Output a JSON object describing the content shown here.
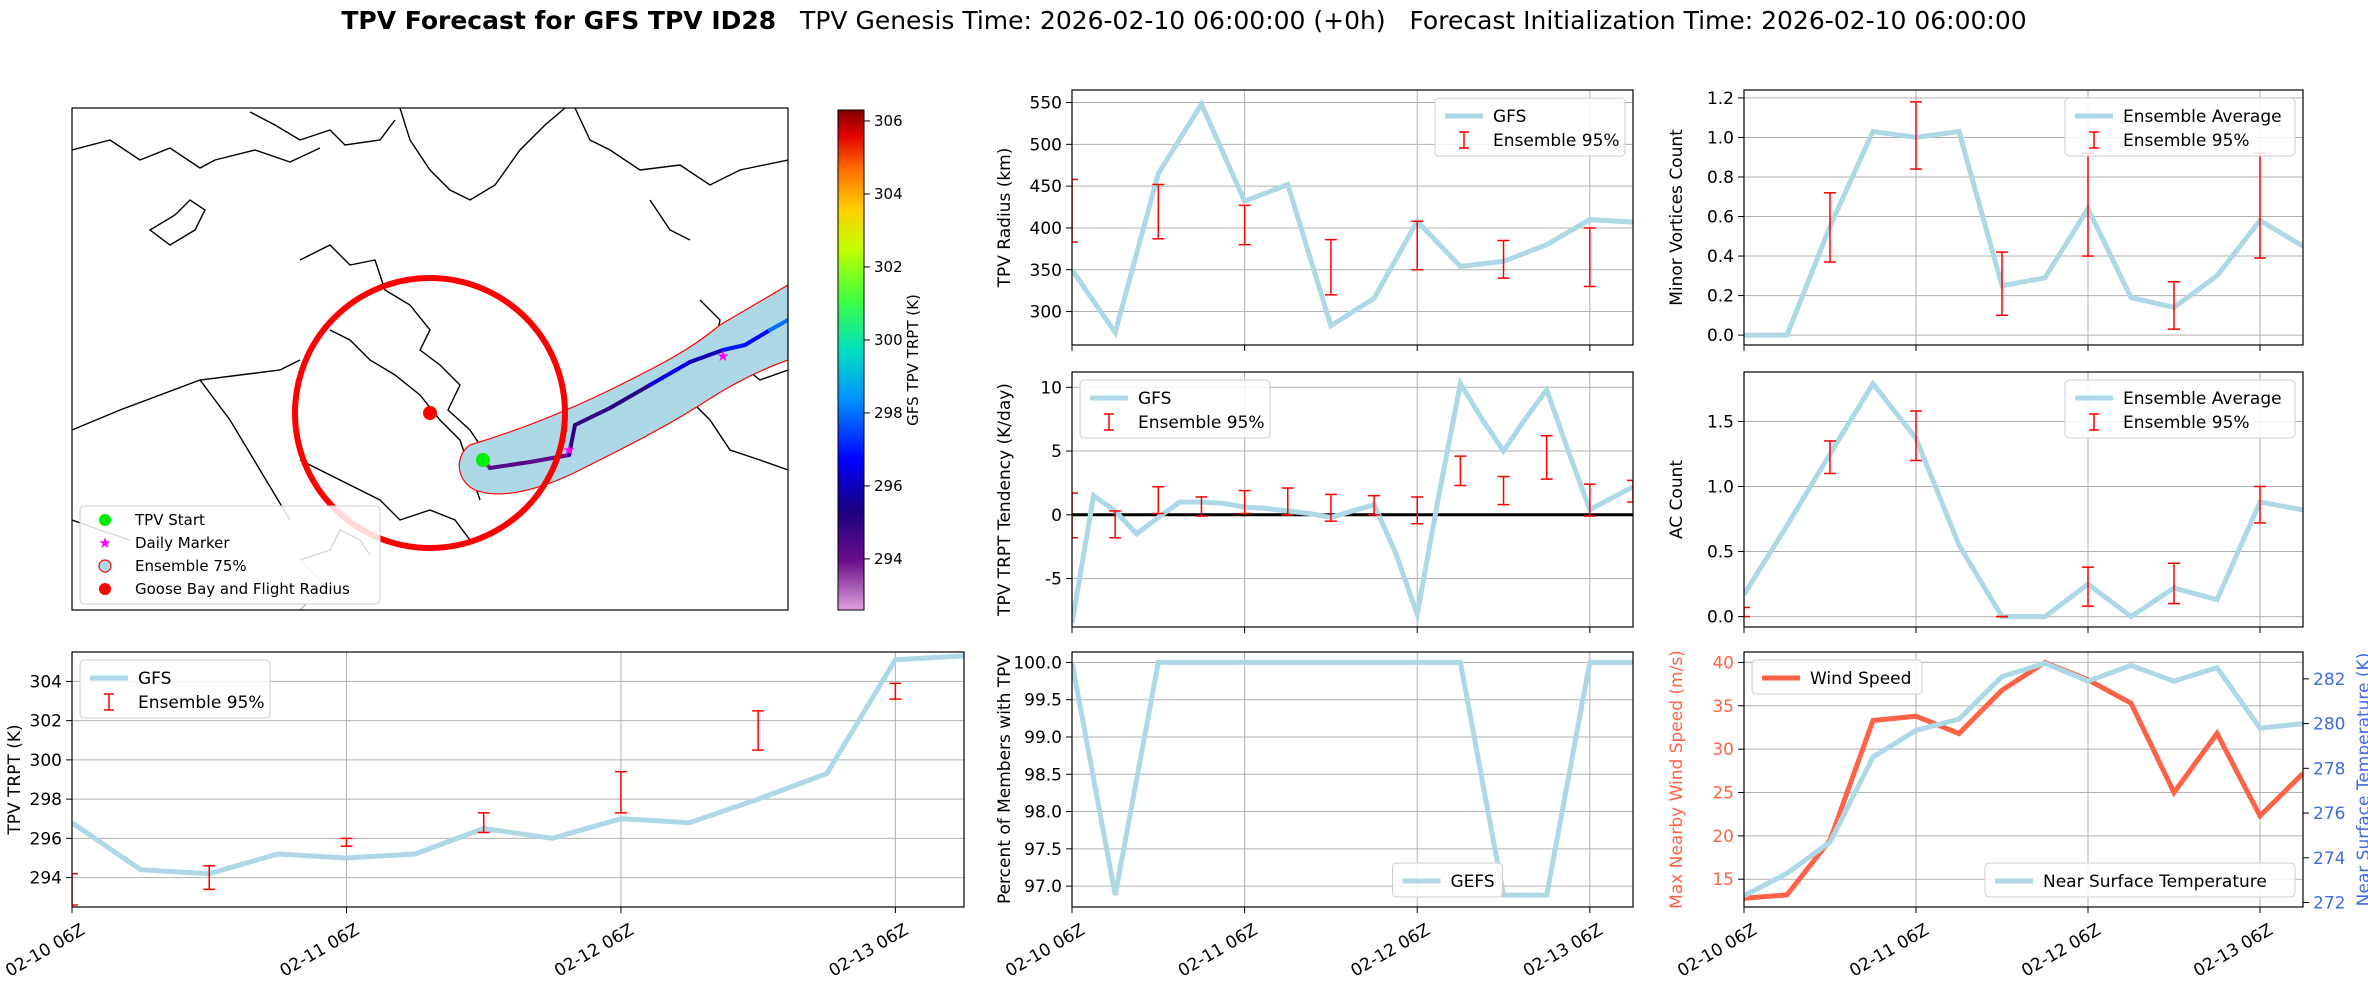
{
  "header": {
    "title_bold": "TPV Forecast for GFS TPV ID28",
    "title_genesis": "TPV Genesis Time: 2026-02-10 06:00:00 (+0h)",
    "title_init": "Forecast Initialization Time: 2026-02-10 06:00:00"
  },
  "colors": {
    "gfs": "#add8e6",
    "ensemble": "#ff0000",
    "wind": "#ff6347",
    "temp_axis": "#4169e1",
    "grid": "#b0b0b0"
  },
  "map": {
    "legend": [
      "TPV Start",
      "Daily Marker",
      "Ensemble 75%",
      "Goose Bay and Flight Radius"
    ],
    "colorbar": {
      "label": "GFS TPV TRPT (K)",
      "ticks": [
        294,
        296,
        298,
        300,
        302,
        304,
        306
      ],
      "range": [
        292.6,
        306.3
      ]
    },
    "track_temperatures": [
      293.6,
      294.3,
      294.1,
      295.0,
      294.9,
      295.1,
      296.4,
      295.9,
      297.0,
      296.8,
      298.0,
      299.3
    ]
  },
  "chart_data": [
    {
      "id": "trpt",
      "type": "line",
      "ylabel": "TPV TRPT (K)",
      "xticks": [
        "02-10 06Z",
        "02-11 06Z",
        "02-12 06Z",
        "02-13 06Z"
      ],
      "yticks": [
        294,
        296,
        298,
        300,
        302,
        304
      ],
      "xlim": [
        0,
        78
      ],
      "ylim": [
        292.5,
        305.5
      ],
      "series": [
        {
          "name": "GFS",
          "x": [
            0,
            6,
            12,
            18,
            24,
            30,
            36,
            42,
            48,
            54,
            60,
            66,
            72,
            78
          ],
          "y": [
            296.8,
            294.4,
            294.2,
            295.2,
            295.0,
            295.2,
            296.5,
            296.0,
            297.0,
            296.8,
            298.0,
            299.3,
            305.1,
            305.3
          ]
        }
      ],
      "ensemble": {
        "name": "Ensemble 95%",
        "x": [
          0,
          12,
          24,
          36,
          48,
          60,
          72
        ],
        "lo": [
          292.6,
          293.4,
          295.6,
          296.3,
          297.3,
          300.5,
          303.1
        ],
        "hi": [
          294.2,
          294.6,
          296.0,
          297.3,
          299.4,
          302.5,
          303.9
        ]
      },
      "legend": "upper-left"
    },
    {
      "id": "radius",
      "type": "line",
      "ylabel": "TPV Radius (km)",
      "xticks": [
        "",
        "",
        "",
        ""
      ],
      "yticks": [
        300,
        350,
        400,
        450,
        500,
        550
      ],
      "xlim": [
        0,
        78
      ],
      "ylim": [
        260,
        565
      ],
      "series": [
        {
          "name": "GFS",
          "x": [
            0,
            6,
            12,
            18,
            24,
            30,
            36,
            42,
            48,
            54,
            60,
            66,
            72,
            78
          ],
          "y": [
            350,
            275,
            465,
            548,
            432,
            452,
            283,
            316,
            408,
            354,
            360,
            380,
            410,
            407
          ]
        }
      ],
      "ensemble": {
        "name": "Ensemble 95%",
        "x": [
          0,
          12,
          24,
          36,
          48,
          60,
          72
        ],
        "lo": [
          383,
          387,
          380,
          320,
          350,
          340,
          330
        ],
        "hi": [
          458,
          452,
          427,
          386,
          408,
          385,
          400
        ]
      },
      "legend": "upper-right"
    },
    {
      "id": "minor_vortices",
      "type": "line",
      "ylabel": "Minor Vortices Count",
      "xticks": [
        "",
        "",
        "",
        ""
      ],
      "yticks": [
        0.0,
        0.2,
        0.4,
        0.6,
        0.8,
        1.0,
        1.2
      ],
      "ytick_labels": [
        "0.0",
        "0.2",
        "0.4",
        "0.6",
        "0.8",
        "1.0",
        "1.2"
      ],
      "xlim": [
        0,
        78
      ],
      "ylim": [
        -0.05,
        1.24
      ],
      "series": [
        {
          "name": "Ensemble Average",
          "x": [
            0,
            6,
            12,
            18,
            24,
            30,
            36,
            42,
            48,
            54,
            60,
            66,
            72,
            78
          ],
          "y": [
            0.0,
            0.0,
            0.55,
            1.03,
            1.0,
            1.03,
            0.25,
            0.29,
            0.64,
            0.19,
            0.14,
            0.3,
            0.58,
            0.45
          ]
        }
      ],
      "ensemble": {
        "name": "Ensemble 95%",
        "x": [
          12,
          24,
          36,
          48,
          60,
          72
        ],
        "lo": [
          0.37,
          0.84,
          0.1,
          0.4,
          0.03,
          0.39
        ],
        "hi": [
          0.72,
          1.18,
          0.42,
          0.92,
          0.27,
          0.92
        ]
      },
      "legend": "upper-right"
    },
    {
      "id": "tendency",
      "type": "line",
      "ylabel": "TPV TRPT Tendency (K/day)",
      "xticks": [
        "",
        "",
        "",
        ""
      ],
      "yticks": [
        -5,
        0,
        5,
        10
      ],
      "xlim": [
        0,
        78
      ],
      "ylim": [
        -8.8,
        11.2
      ],
      "zero_line": true,
      "series": [
        {
          "name": "GFS",
          "x": [
            0,
            3,
            6,
            9,
            12,
            15,
            18,
            21,
            24,
            27,
            30,
            33,
            36,
            39,
            42,
            45,
            48,
            51,
            54,
            57,
            60,
            63,
            66,
            69,
            72,
            75,
            78
          ],
          "y": [
            -8.5,
            1.5,
            0.3,
            -1.5,
            -0.2,
            1.0,
            1.0,
            0.9,
            0.6,
            0.5,
            0.3,
            0.1,
            -0.2,
            0.3,
            0.8,
            -3.0,
            -7.8,
            1.5,
            10.3,
            7.5,
            5.0,
            7.5,
            9.8,
            5.0,
            0.4,
            1.3,
            2.2
          ]
        }
      ],
      "ensemble": {
        "name": "Ensemble 95%",
        "x": [
          0,
          6,
          12,
          18,
          24,
          30,
          36,
          42,
          48,
          54,
          60,
          66,
          72,
          78
        ],
        "lo": [
          -1.8,
          -1.8,
          0.1,
          -0.1,
          0.1,
          0.0,
          -0.5,
          0.0,
          -0.7,
          2.3,
          0.8,
          2.8,
          -0.1,
          1.0
        ],
        "hi": [
          1.7,
          0.3,
          2.2,
          1.4,
          1.9,
          2.1,
          1.6,
          1.5,
          1.4,
          4.6,
          3.0,
          6.2,
          2.4,
          2.7
        ]
      },
      "legend": "upper-left"
    },
    {
      "id": "ac_count",
      "type": "line",
      "ylabel": "AC Count",
      "xticks": [
        "",
        "",
        "",
        ""
      ],
      "yticks": [
        0.0,
        0.5,
        1.0,
        1.5
      ],
      "ytick_labels": [
        "0.0",
        "0.5",
        "1.0",
        "1.5"
      ],
      "xlim": [
        0,
        78
      ],
      "ylim": [
        -0.08,
        1.88
      ],
      "series": [
        {
          "name": "Ensemble Average",
          "x": [
            0,
            6,
            12,
            18,
            24,
            30,
            36,
            42,
            48,
            54,
            60,
            66,
            72,
            78
          ],
          "y": [
            0.17,
            0.7,
            1.25,
            1.79,
            1.37,
            0.55,
            0.0,
            0.0,
            0.25,
            0.0,
            0.22,
            0.13,
            0.88,
            0.82
          ]
        }
      ],
      "ensemble": {
        "name": "Ensemble 95%",
        "x": [
          0,
          12,
          24,
          36,
          48,
          60,
          72
        ],
        "lo": [
          0.0,
          1.1,
          1.2,
          0.0,
          0.08,
          0.1,
          0.72
        ],
        "hi": [
          0.07,
          1.35,
          1.58,
          0.0,
          0.38,
          0.41,
          1.0
        ]
      },
      "legend": "upper-right"
    },
    {
      "id": "members",
      "type": "line",
      "ylabel": "Percent of Members with TPV",
      "xticks": [
        "02-10 06Z",
        "02-11 06Z",
        "02-12 06Z",
        "02-13 06Z"
      ],
      "yticks": [
        97.0,
        97.5,
        98.0,
        98.5,
        99.0,
        99.5,
        100.0
      ],
      "ytick_labels": [
        "97.0",
        "97.5",
        "98.0",
        "98.5",
        "99.0",
        "99.5",
        "100.0"
      ],
      "xlim": [
        0,
        78
      ],
      "ylim": [
        96.72,
        100.14
      ],
      "series": [
        {
          "name": "GEFS",
          "x": [
            0,
            6,
            12,
            18,
            24,
            30,
            36,
            42,
            48,
            54,
            60,
            66,
            72,
            78
          ],
          "y": [
            100.0,
            96.88,
            100.0,
            100.0,
            100.0,
            100.0,
            100.0,
            100.0,
            100.0,
            100.0,
            96.88,
            96.88,
            100.0,
            100.0
          ]
        }
      ],
      "legend": "lower-center"
    },
    {
      "id": "wind_temp",
      "type": "line",
      "ylabel": "Max Nearby Wind Speed (m/s)",
      "ylabel_right": "Near Surface Temperature (K)",
      "xticks": [
        "02-10 06Z",
        "02-11 06Z",
        "02-12 06Z",
        "02-13 06Z"
      ],
      "yticks": [
        15,
        20,
        25,
        30,
        35,
        40
      ],
      "yticks_right": [
        272,
        274,
        276,
        278,
        280,
        282
      ],
      "xlim": [
        0,
        78
      ],
      "ylim": [
        11.8,
        41.2
      ],
      "ylim_right": [
        271.8,
        283.2
      ],
      "series": [
        {
          "name": "Wind Speed",
          "axis": "left",
          "x": [
            0,
            6,
            12,
            18,
            24,
            30,
            36,
            42,
            48,
            54,
            60,
            66,
            72,
            78
          ],
          "y": [
            12.8,
            13.2,
            19.5,
            33.3,
            33.8,
            31.8,
            36.8,
            40.0,
            38.0,
            35.3,
            25.0,
            31.8,
            22.3,
            27.2
          ]
        },
        {
          "name": "Near Surface Temperature",
          "axis": "right",
          "x": [
            0,
            6,
            12,
            18,
            24,
            30,
            36,
            42,
            48,
            54,
            60,
            66,
            72,
            78
          ],
          "y": [
            272.3,
            273.3,
            274.7,
            278.5,
            279.7,
            280.2,
            282.1,
            282.7,
            281.9,
            282.6,
            281.9,
            282.5,
            279.8,
            280.0
          ]
        }
      ],
      "legend": "split"
    }
  ]
}
